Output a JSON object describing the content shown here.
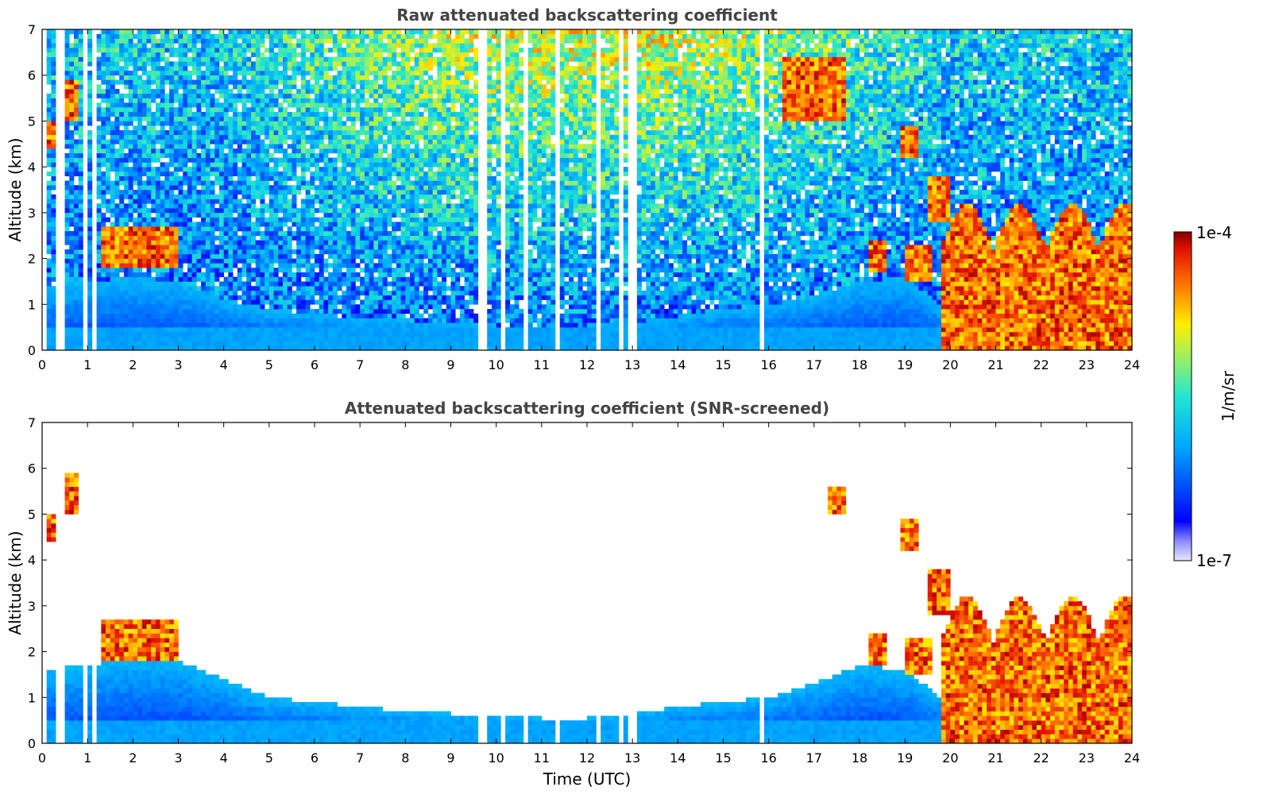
{
  "colorbar": {
    "max_label": "1e-4",
    "min_label": "1e-7",
    "unit_label": "1/m/sr",
    "min_value": 1e-07,
    "max_value": 0.0001,
    "scale": "log",
    "colormap": "jet"
  },
  "chart_data": [
    {
      "type": "heatmap",
      "title": "Raw attenuated backscattering coefficient",
      "xlabel": "",
      "ylabel": "Altitude (km)",
      "xlim": [
        0,
        24
      ],
      "ylim": [
        0,
        7
      ],
      "x_ticks": [
        "0",
        "1",
        "2",
        "3",
        "4",
        "5",
        "6",
        "7",
        "8",
        "9",
        "10",
        "11",
        "12",
        "13",
        "14",
        "15",
        "16",
        "17",
        "18",
        "19",
        "20",
        "21",
        "22",
        "23",
        "24"
      ],
      "y_ticks": [
        "0",
        "1",
        "2",
        "3",
        "4",
        "5",
        "6",
        "7"
      ],
      "screened": false,
      "gaps_utc": [
        [
          0.05,
          0.12
        ],
        [
          0.33,
          0.45
        ],
        [
          0.9,
          0.98
        ],
        [
          1.15,
          1.22
        ],
        [
          1.26,
          1.3
        ],
        [
          9.1,
          9.13
        ],
        [
          9.6,
          9.66
        ],
        [
          9.72,
          9.78
        ],
        [
          10.08,
          10.18
        ],
        [
          10.6,
          10.68
        ],
        [
          11.05,
          11.1
        ],
        [
          11.28,
          11.4
        ],
        [
          12.2,
          12.32
        ],
        [
          12.75,
          12.82
        ],
        [
          12.95,
          13.05
        ],
        [
          15.85,
          15.88
        ]
      ],
      "boundary_layer_top_km": [
        [
          0,
          1.4
        ],
        [
          1,
          1.5
        ],
        [
          2,
          1.6
        ],
        [
          3,
          1.5
        ],
        [
          4,
          1.1
        ],
        [
          5,
          0.9
        ],
        [
          6,
          0.8
        ],
        [
          7,
          0.7
        ],
        [
          8,
          0.65
        ],
        [
          9,
          0.6
        ],
        [
          10,
          0.55
        ],
        [
          11,
          0.55
        ],
        [
          12,
          0.55
        ],
        [
          13,
          0.6
        ],
        [
          14,
          0.75
        ],
        [
          15,
          0.9
        ],
        [
          16,
          1.0
        ],
        [
          17,
          1.2
        ],
        [
          18,
          1.5
        ],
        [
          19,
          1.6
        ],
        [
          19.8,
          1.0
        ]
      ],
      "cloud_layers": [
        {
          "x": [
            0.0,
            0.3
          ],
          "y": [
            4.4,
            5.0
          ]
        },
        {
          "x": [
            0.45,
            0.75
          ],
          "y": [
            5.0,
            5.9
          ]
        },
        {
          "x": [
            1.3,
            3.0
          ],
          "y": [
            1.8,
            2.7
          ]
        },
        {
          "x": [
            16.3,
            17.7
          ],
          "y": [
            5.0,
            6.4
          ]
        },
        {
          "x": [
            18.2,
            18.6
          ],
          "y": [
            1.7,
            2.4
          ]
        },
        {
          "x": [
            18.9,
            19.3
          ],
          "y": [
            4.2,
            4.9
          ]
        },
        {
          "x": [
            19.0,
            19.6
          ],
          "y": [
            1.5,
            2.3
          ]
        },
        {
          "x": [
            19.5,
            20.0
          ],
          "y": [
            2.8,
            3.8
          ]
        },
        {
          "x": [
            19.8,
            24.0
          ],
          "y": [
            0.0,
            3.5
          ]
        }
      ]
    },
    {
      "type": "heatmap",
      "title": "Attenuated backscattering coefficient (SNR-screened)",
      "xlabel": "Time (UTC)",
      "ylabel": "Altitude (km)",
      "xlim": [
        0,
        24
      ],
      "ylim": [
        0,
        7
      ],
      "x_ticks": [
        "0",
        "1",
        "2",
        "3",
        "4",
        "5",
        "6",
        "7",
        "8",
        "9",
        "10",
        "11",
        "12",
        "13",
        "14",
        "15",
        "16",
        "17",
        "18",
        "19",
        "20",
        "21",
        "22",
        "23",
        "24"
      ],
      "y_ticks": [
        "0",
        "1",
        "2",
        "3",
        "4",
        "5",
        "6",
        "7"
      ],
      "screened": true,
      "gaps_utc": [
        [
          0.05,
          0.12
        ],
        [
          0.33,
          0.45
        ],
        [
          0.9,
          0.98
        ],
        [
          1.15,
          1.22
        ],
        [
          1.26,
          1.3
        ],
        [
          9.1,
          9.13
        ],
        [
          9.6,
          9.66
        ],
        [
          9.72,
          9.78
        ],
        [
          10.08,
          10.18
        ],
        [
          10.6,
          10.68
        ],
        [
          11.05,
          11.1
        ],
        [
          11.28,
          11.4
        ],
        [
          12.2,
          12.32
        ],
        [
          12.75,
          12.82
        ],
        [
          12.95,
          13.05
        ],
        [
          15.85,
          15.88
        ]
      ],
      "boundary_layer_top_km": [
        [
          0,
          1.6
        ],
        [
          1,
          1.7
        ],
        [
          2,
          1.9
        ],
        [
          3,
          1.8
        ],
        [
          4,
          1.4
        ],
        [
          5,
          1.0
        ],
        [
          6,
          0.9
        ],
        [
          7,
          0.8
        ],
        [
          8,
          0.7
        ],
        [
          9,
          0.65
        ],
        [
          10,
          0.6
        ],
        [
          11,
          0.55
        ],
        [
          12,
          0.55
        ],
        [
          13,
          0.65
        ],
        [
          14,
          0.8
        ],
        [
          15,
          0.9
        ],
        [
          16,
          1.0
        ],
        [
          17,
          1.3
        ],
        [
          18,
          1.7
        ],
        [
          19,
          1.6
        ],
        [
          19.8,
          1.0
        ]
      ],
      "cloud_layers": [
        {
          "x": [
            0.0,
            0.3
          ],
          "y": [
            4.4,
            5.0
          ]
        },
        {
          "x": [
            0.45,
            0.75
          ],
          "y": [
            5.0,
            5.9
          ]
        },
        {
          "x": [
            1.3,
            3.0
          ],
          "y": [
            1.8,
            2.7
          ]
        },
        {
          "x": [
            17.3,
            17.7
          ],
          "y": [
            5.0,
            5.6
          ]
        },
        {
          "x": [
            18.2,
            18.6
          ],
          "y": [
            1.7,
            2.4
          ]
        },
        {
          "x": [
            18.9,
            19.3
          ],
          "y": [
            4.2,
            4.9
          ]
        },
        {
          "x": [
            19.0,
            19.6
          ],
          "y": [
            1.5,
            2.3
          ]
        },
        {
          "x": [
            19.5,
            20.0
          ],
          "y": [
            2.8,
            3.8
          ]
        },
        {
          "x": [
            19.8,
            24.0
          ],
          "y": [
            0.0,
            3.5
          ]
        }
      ]
    }
  ]
}
